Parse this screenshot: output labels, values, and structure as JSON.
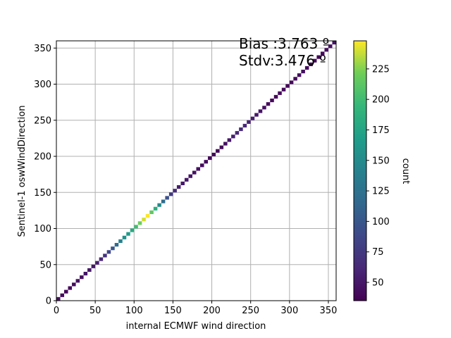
{
  "chart_data": {
    "type": "heatmap",
    "xlabel": "internal ECMWF wind direction",
    "ylabel": "Sentinel-1 oswWindDirection",
    "xlim": [
      0,
      360
    ],
    "ylim": [
      0,
      360
    ],
    "xticks": [
      0,
      50,
      100,
      150,
      200,
      250,
      300,
      350
    ],
    "yticks": [
      0,
      50,
      100,
      150,
      200,
      250,
      300,
      350
    ],
    "grid": true,
    "annotations": [
      "Bias :3.763 º",
      "Stdv:3.476 º"
    ],
    "colorbar": {
      "label": "count",
      "colormap": "viridis",
      "range": [
        35,
        248
      ],
      "ticks": [
        50,
        75,
        100,
        125,
        150,
        175,
        200,
        225
      ]
    },
    "diagonal_bins": {
      "description": "2D histogram cells concentrated along x=y",
      "x": [
        0,
        5,
        10,
        15,
        20,
        25,
        30,
        35,
        40,
        45,
        50,
        55,
        60,
        65,
        70,
        75,
        80,
        85,
        90,
        95,
        100,
        105,
        110,
        115,
        120,
        125,
        130,
        135,
        140,
        145,
        150,
        155,
        160,
        165,
        170,
        175,
        180,
        185,
        190,
        195,
        200,
        205,
        210,
        215,
        220,
        225,
        230,
        235,
        240,
        245,
        250,
        255,
        260,
        265,
        270,
        275,
        280,
        285,
        290,
        295,
        300,
        305,
        310,
        315,
        320,
        325,
        330,
        335,
        340,
        345,
        350,
        355
      ],
      "count": [
        45,
        42,
        40,
        40,
        42,
        45,
        45,
        48,
        50,
        50,
        55,
        60,
        70,
        85,
        100,
        120,
        140,
        155,
        165,
        180,
        200,
        220,
        240,
        248,
        215,
        185,
        150,
        120,
        95,
        75,
        65,
        55,
        50,
        50,
        48,
        45,
        45,
        42,
        42,
        40,
        40,
        40,
        42,
        45,
        50,
        55,
        60,
        65,
        62,
        58,
        55,
        50,
        48,
        45,
        42,
        40,
        40,
        40,
        40,
        38,
        40,
        42,
        45,
        45,
        42,
        40,
        40,
        38,
        40,
        42,
        45,
        48
      ]
    }
  }
}
